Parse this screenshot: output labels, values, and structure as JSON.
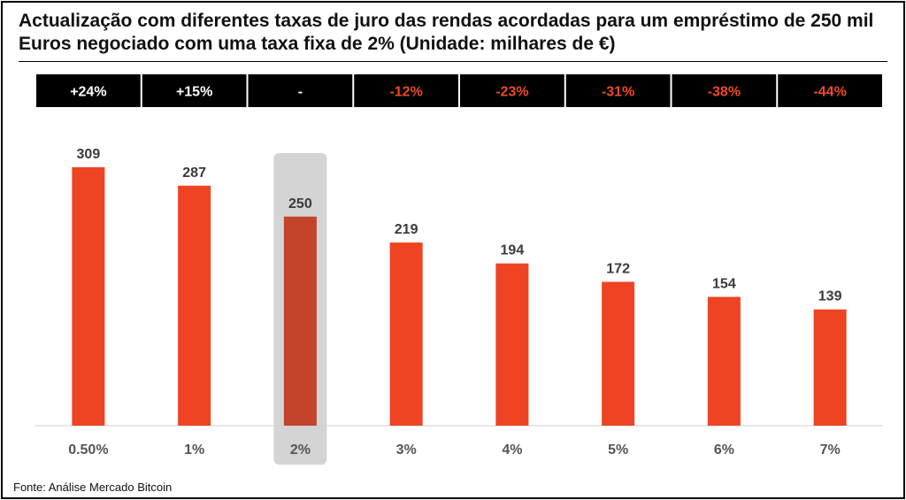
{
  "title": "Actualização com diferentes taxas de juro das rendas acordadas para um empréstimo de 250 mil Euros negociado com uma taxa fixa de 2% (Unidade: milhares de €)",
  "source": "Fonte: Análise Mercado Bitcoin",
  "colors": {
    "bar": "#EE4423",
    "bar_highlight": "#C4432B",
    "highlight_bg": "#D4D4D4",
    "header_bg": "#000000",
    "header_positive": "#FFFFFF",
    "header_negative": "#F04A24",
    "value_label": "#3A3A3A",
    "axis_label": "#555555"
  },
  "chart_data": {
    "type": "bar",
    "title": "Actualização com diferentes taxas de juro das rendas acordadas para um empréstimo de 250 mil Euros negociado com uma taxa fixa de 2% (Unidade: milhares de €)",
    "categories": [
      "0.50%",
      "1%",
      "2%",
      "3%",
      "4%",
      "5%",
      "6%",
      "7%"
    ],
    "values": [
      309,
      287,
      250,
      219,
      194,
      172,
      154,
      139
    ],
    "changes": [
      "+24%",
      "+15%",
      "-",
      "-12%",
      "-23%",
      "-31%",
      "-38%",
      "-44%"
    ],
    "highlighted_category": "2%",
    "ylim": [
      0,
      330
    ],
    "xlabel": "",
    "ylabel": "",
    "grid": false,
    "legend": "none"
  }
}
